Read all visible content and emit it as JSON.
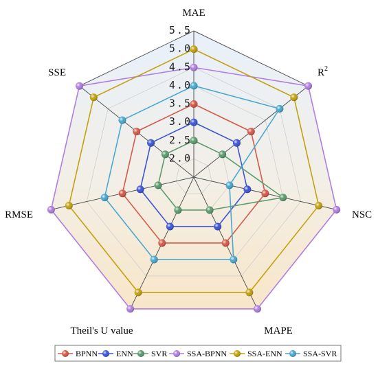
{
  "chart_data": {
    "type": "radar",
    "axes": [
      "MAE",
      "R²",
      "NSC",
      "MAPE",
      "Theil's U value",
      "RMSE",
      "SSE"
    ],
    "axis_label_parts": [
      {
        "base": "MAE",
        "sup": ""
      },
      {
        "base": "R",
        "sup": "2"
      },
      {
        "base": "NSC",
        "sup": ""
      },
      {
        "base": "MAPE",
        "sup": ""
      },
      {
        "base": "Theil's U value",
        "sup": ""
      },
      {
        "base": "RMSE",
        "sup": ""
      },
      {
        "base": "SSE",
        "sup": ""
      }
    ],
    "radial_range": [
      1.5,
      5.5
    ],
    "ticks": [
      2.0,
      2.5,
      3.0,
      3.5,
      4.0,
      4.5,
      5.0,
      5.5
    ],
    "tick_labels": [
      "2.0",
      "2.5",
      "3.0",
      "3.5",
      "4.0",
      "4.5",
      "5.0",
      "5.5"
    ],
    "grid": true,
    "legend_position": "bottom",
    "series": [
      {
        "name": "BPNN",
        "color": "#d45a4a",
        "values": [
          3.5,
          3.5,
          3.5,
          3.5,
          3.5,
          3.5,
          3.5
        ]
      },
      {
        "name": "ENN",
        "color": "#3b55d6",
        "values": [
          3.0,
          3.0,
          3.0,
          3.0,
          3.0,
          3.0,
          3.0
        ]
      },
      {
        "name": "SVR",
        "color": "#5b9b6e",
        "values": [
          2.5,
          2.5,
          4.0,
          2.5,
          2.5,
          2.5,
          2.5
        ]
      },
      {
        "name": "SSA-BPNN",
        "color": "#b07fe0",
        "values": [
          4.5,
          5.5,
          5.5,
          5.5,
          5.5,
          5.5,
          5.5
        ]
      },
      {
        "name": "SSA-ENN",
        "color": "#c2a20f",
        "values": [
          5.0,
          5.0,
          5.0,
          5.0,
          5.0,
          5.0,
          5.0
        ]
      },
      {
        "name": "SSA-SVR",
        "color": "#4aa8cf",
        "values": [
          4.0,
          4.5,
          2.5,
          4.0,
          4.0,
          4.0,
          4.0
        ]
      }
    ]
  }
}
